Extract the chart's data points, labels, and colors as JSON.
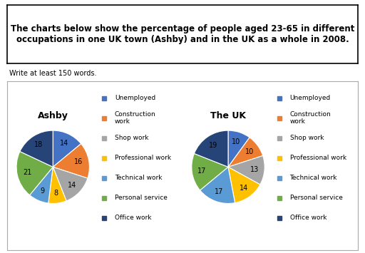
{
  "header_text": "The charts below show the percentage of people aged 23-65 in different\noccupations in one UK town (Ashby) and in the UK as a whole in 2008.",
  "subtext": "Write at least 150 words.",
  "ashby_title": "Ashby",
  "uk_title": "The UK",
  "categories": [
    "Unemployed",
    "Construction\nwork",
    "Shop work",
    "Professional work",
    "Technical work",
    "Personal service",
    "Office work"
  ],
  "ashby_values": [
    14,
    16,
    14,
    8,
    9,
    21,
    18
  ],
  "uk_values": [
    10,
    10,
    13,
    14,
    17,
    17,
    19
  ],
  "colors": [
    "#4472C4",
    "#ED7D31",
    "#A5A5A5",
    "#FFC000",
    "#5B9BD5",
    "#70AD47",
    "#264478"
  ],
  "background_color": "#FFFFFF",
  "box_color": "#000000",
  "chart_bg": "#FFFFFF",
  "label_fontsize": 7,
  "title_fontsize": 9,
  "legend_fontsize": 6.5,
  "header_fontsize": 8.5
}
